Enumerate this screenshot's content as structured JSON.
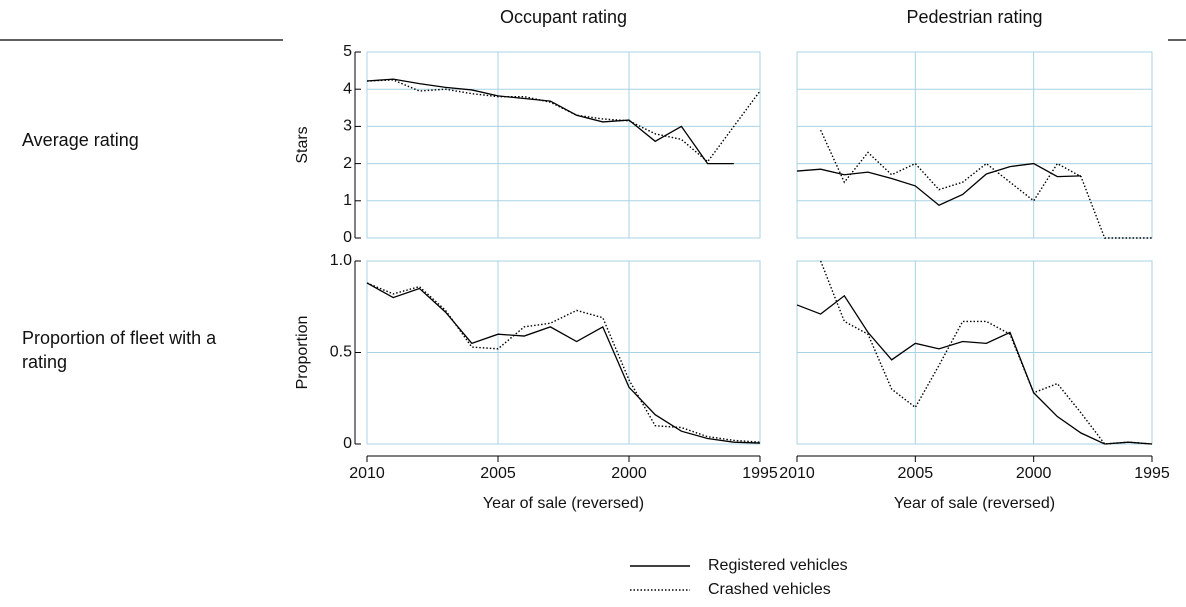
{
  "row_labels": [
    "Average rating",
    "Proportion of fleet with a rating"
  ],
  "chart_data": [
    {
      "type": "line",
      "title": "Occupant rating",
      "ylabel": "Stars",
      "x": [
        2010,
        2009,
        2008,
        2007,
        2006,
        2005,
        2004,
        2003,
        2002,
        2001,
        2000,
        1999,
        1998,
        1997,
        1996,
        1995
      ],
      "xlim": [
        2010,
        1995
      ],
      "xticks": [
        2010,
        2005,
        2000,
        1995
      ],
      "show_xticklabels": false,
      "ylim": [
        0,
        5
      ],
      "yticks": [
        0,
        1,
        2,
        3,
        4,
        5
      ],
      "show_yticklabels": true,
      "grid": true,
      "series": [
        {
          "name": "Registered vehicles",
          "color": "#000000",
          "linestyle": "solid",
          "values": [
            4.22,
            4.27,
            4.15,
            4.05,
            3.98,
            3.82,
            3.75,
            3.68,
            3.3,
            3.12,
            3.17,
            2.6,
            3.0,
            2.0,
            2.0,
            null
          ]
        },
        {
          "name": "Crashed vehicles",
          "color": "#000000",
          "linestyle": "dotted",
          "values": [
            4.22,
            4.25,
            3.95,
            4.0,
            3.88,
            3.8,
            3.8,
            3.65,
            3.3,
            3.2,
            3.15,
            2.8,
            2.65,
            2.05,
            3.0,
            3.95
          ]
        }
      ]
    },
    {
      "type": "line",
      "title": "Pedestrian rating",
      "x": [
        2010,
        2009,
        2008,
        2007,
        2006,
        2005,
        2004,
        2003,
        2002,
        2001,
        2000,
        1999,
        1998,
        1997,
        1996,
        1995
      ],
      "xlim": [
        2010,
        1995
      ],
      "xticks": [
        2010,
        2005,
        2000,
        1995
      ],
      "show_xticklabels": false,
      "ylim": [
        0,
        5
      ],
      "yticks": [
        0,
        1,
        2,
        3,
        4,
        5
      ],
      "show_yticklabels": false,
      "grid": true,
      "series": [
        {
          "name": "Registered vehicles",
          "color": "#000000",
          "linestyle": "solid",
          "values": [
            1.8,
            1.85,
            1.7,
            1.77,
            1.6,
            1.4,
            0.88,
            1.17,
            1.72,
            1.92,
            2.0,
            1.65,
            1.67,
            null,
            null,
            null
          ]
        },
        {
          "name": "Crashed vehicles",
          "color": "#000000",
          "linestyle": "dotted",
          "values": [
            null,
            2.9,
            1.5,
            2.3,
            1.7,
            2.0,
            1.3,
            1.5,
            2.0,
            1.5,
            1.0,
            2.0,
            1.65,
            0,
            0,
            0
          ]
        }
      ]
    },
    {
      "type": "line",
      "ylabel": "Proportion",
      "xlabel": "Year of sale (reversed)",
      "x": [
        2010,
        2009,
        2008,
        2007,
        2006,
        2005,
        2004,
        2003,
        2002,
        2001,
        2000,
        1999,
        1998,
        1997,
        1996,
        1995
      ],
      "xlim": [
        2010,
        1995
      ],
      "xticks": [
        2010,
        2005,
        2000,
        1995
      ],
      "show_xticklabels": true,
      "ylim": [
        0,
        1
      ],
      "yticks": [
        0,
        0.5,
        {
          "value": 1,
          "label": "1.0"
        }
      ],
      "show_yticklabels": true,
      "grid": true,
      "series": [
        {
          "name": "Registered vehicles",
          "color": "#000000",
          "linestyle": "solid",
          "values": [
            0.88,
            0.8,
            0.85,
            0.72,
            0.55,
            0.6,
            0.59,
            0.64,
            0.56,
            0.64,
            0.31,
            0.16,
            0.07,
            0.03,
            0.01,
            0.005
          ]
        },
        {
          "name": "Crashed vehicles",
          "color": "#000000",
          "linestyle": "dotted",
          "values": [
            0.88,
            0.82,
            0.86,
            0.73,
            0.53,
            0.52,
            0.64,
            0.66,
            0.73,
            0.69,
            0.35,
            0.1,
            0.09,
            0.04,
            0.02,
            0.01
          ]
        }
      ]
    },
    {
      "type": "line",
      "xlabel": "Year of sale (reversed)",
      "x": [
        2010,
        2009,
        2008,
        2007,
        2006,
        2005,
        2004,
        2003,
        2002,
        2001,
        2000,
        1999,
        1998,
        1997,
        1996,
        1995
      ],
      "xlim": [
        2010,
        1995
      ],
      "xticks": [
        2010,
        2005,
        2000,
        1995
      ],
      "show_xticklabels": true,
      "ylim": [
        0,
        1
      ],
      "yticks": [
        0,
        0.5,
        {
          "value": 1,
          "label": "1.0"
        }
      ],
      "show_yticklabels": false,
      "grid": true,
      "series": [
        {
          "name": "Registered vehicles",
          "color": "#000000",
          "linestyle": "solid",
          "values": [
            0.76,
            0.71,
            0.81,
            0.61,
            0.46,
            0.55,
            0.52,
            0.56,
            0.55,
            0.61,
            0.28,
            0.15,
            0.06,
            0.0,
            0.01,
            0.0
          ]
        },
        {
          "name": "Crashed vehicles",
          "color": "#000000",
          "linestyle": "dotted",
          "values": [
            null,
            1.0,
            0.67,
            0.6,
            0.3,
            0.2,
            0.43,
            0.67,
            0.67,
            0.6,
            0.28,
            0.33,
            0.17,
            0.0,
            0.01,
            0.0
          ]
        }
      ]
    }
  ]
}
